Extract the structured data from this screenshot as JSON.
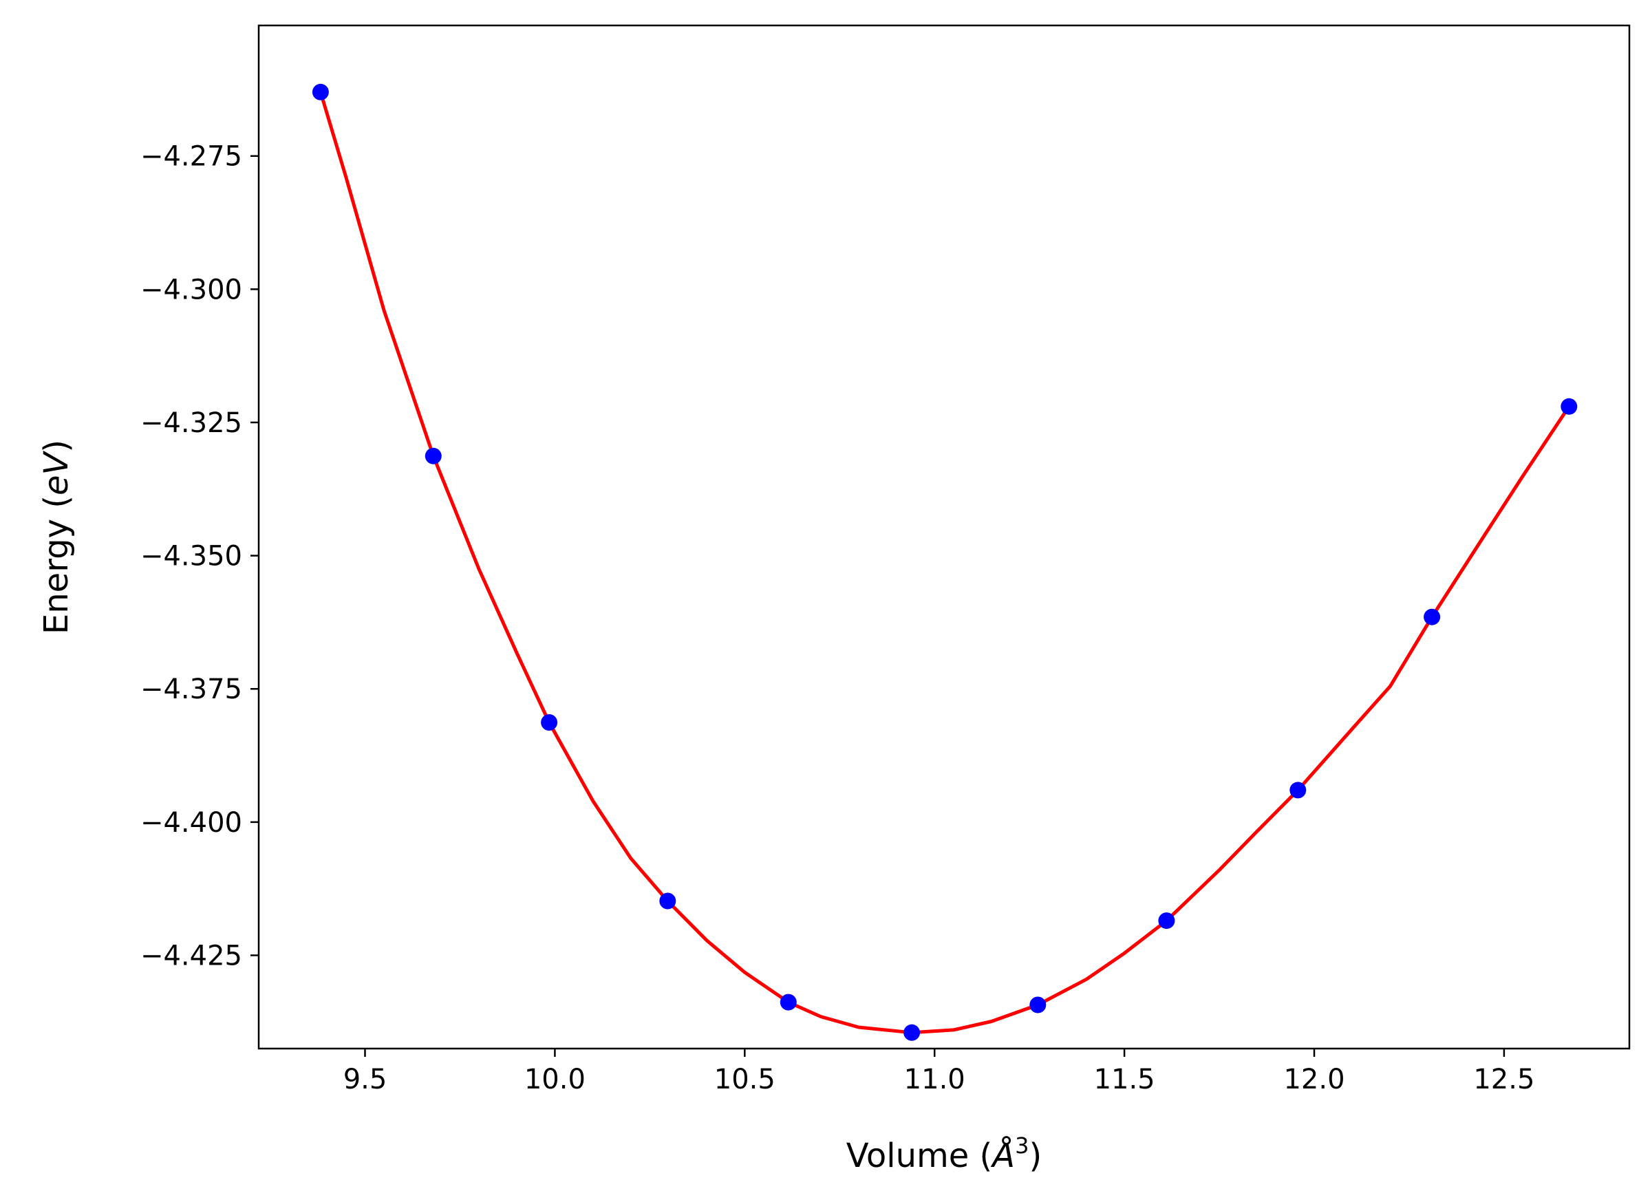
{
  "chart_data": {
    "type": "scatter",
    "title": "",
    "xlabel": {
      "prefix": "Volume (",
      "symbol": "Å",
      "superscript": "3",
      "suffix": ")"
    },
    "ylabel": {
      "prefix": "Energy (",
      "unit": "eV",
      "suffix": ")"
    },
    "xlim": [
      9.22,
      12.83
    ],
    "ylim": [
      -4.4425,
      -4.2505
    ],
    "x_ticks": [
      {
        "value": 9.5,
        "label": "9.5"
      },
      {
        "value": 10.0,
        "label": "10.0"
      },
      {
        "value": 10.5,
        "label": "10.5"
      },
      {
        "value": 11.0,
        "label": "11.0"
      },
      {
        "value": 11.5,
        "label": "11.5"
      },
      {
        "value": 12.0,
        "label": "12.0"
      },
      {
        "value": 12.5,
        "label": "12.5"
      }
    ],
    "y_ticks": [
      {
        "value": -4.275,
        "label": "−4.275"
      },
      {
        "value": -4.3,
        "label": "−4.300"
      },
      {
        "value": -4.325,
        "label": "−4.325"
      },
      {
        "value": -4.35,
        "label": "−4.350"
      },
      {
        "value": -4.375,
        "label": "−4.375"
      },
      {
        "value": -4.4,
        "label": "−4.400"
      },
      {
        "value": -4.425,
        "label": "−4.425"
      }
    ],
    "grid": false,
    "series": [
      {
        "kind": "points",
        "color": "#0000ff",
        "x": [
          9.383,
          9.68,
          9.985,
          10.297,
          10.615,
          10.94,
          11.272,
          11.611,
          11.957,
          12.31,
          12.671
        ],
        "y": [
          -4.263,
          -4.3313,
          -4.3813,
          -4.4148,
          -4.4338,
          -4.4395,
          -4.4343,
          -4.4185,
          -4.394,
          -4.3615,
          -4.322
        ]
      },
      {
        "kind": "fit-curve",
        "color": "#ff0000",
        "x": [
          9.383,
          9.45,
          9.55,
          9.68,
          9.8,
          9.9,
          9.985,
          10.1,
          10.2,
          10.297,
          10.4,
          10.5,
          10.615,
          10.7,
          10.8,
          10.94,
          11.05,
          11.15,
          11.272,
          11.4,
          11.5,
          11.611,
          11.75,
          11.85,
          11.957,
          12.1,
          12.2,
          12.31,
          12.45,
          12.55,
          12.671
        ],
        "y": [
          -4.263,
          -4.279,
          -4.304,
          -4.3313,
          -4.3525,
          -4.3683,
          -4.3813,
          -4.396,
          -4.4068,
          -4.4148,
          -4.4222,
          -4.4282,
          -4.4338,
          -4.4365,
          -4.4385,
          -4.4395,
          -4.439,
          -4.4374,
          -4.4343,
          -4.4295,
          -4.4246,
          -4.4185,
          -4.409,
          -4.4017,
          -4.394,
          -4.3825,
          -4.3745,
          -4.3615,
          -4.346,
          -4.335,
          -4.322
        ]
      }
    ]
  }
}
